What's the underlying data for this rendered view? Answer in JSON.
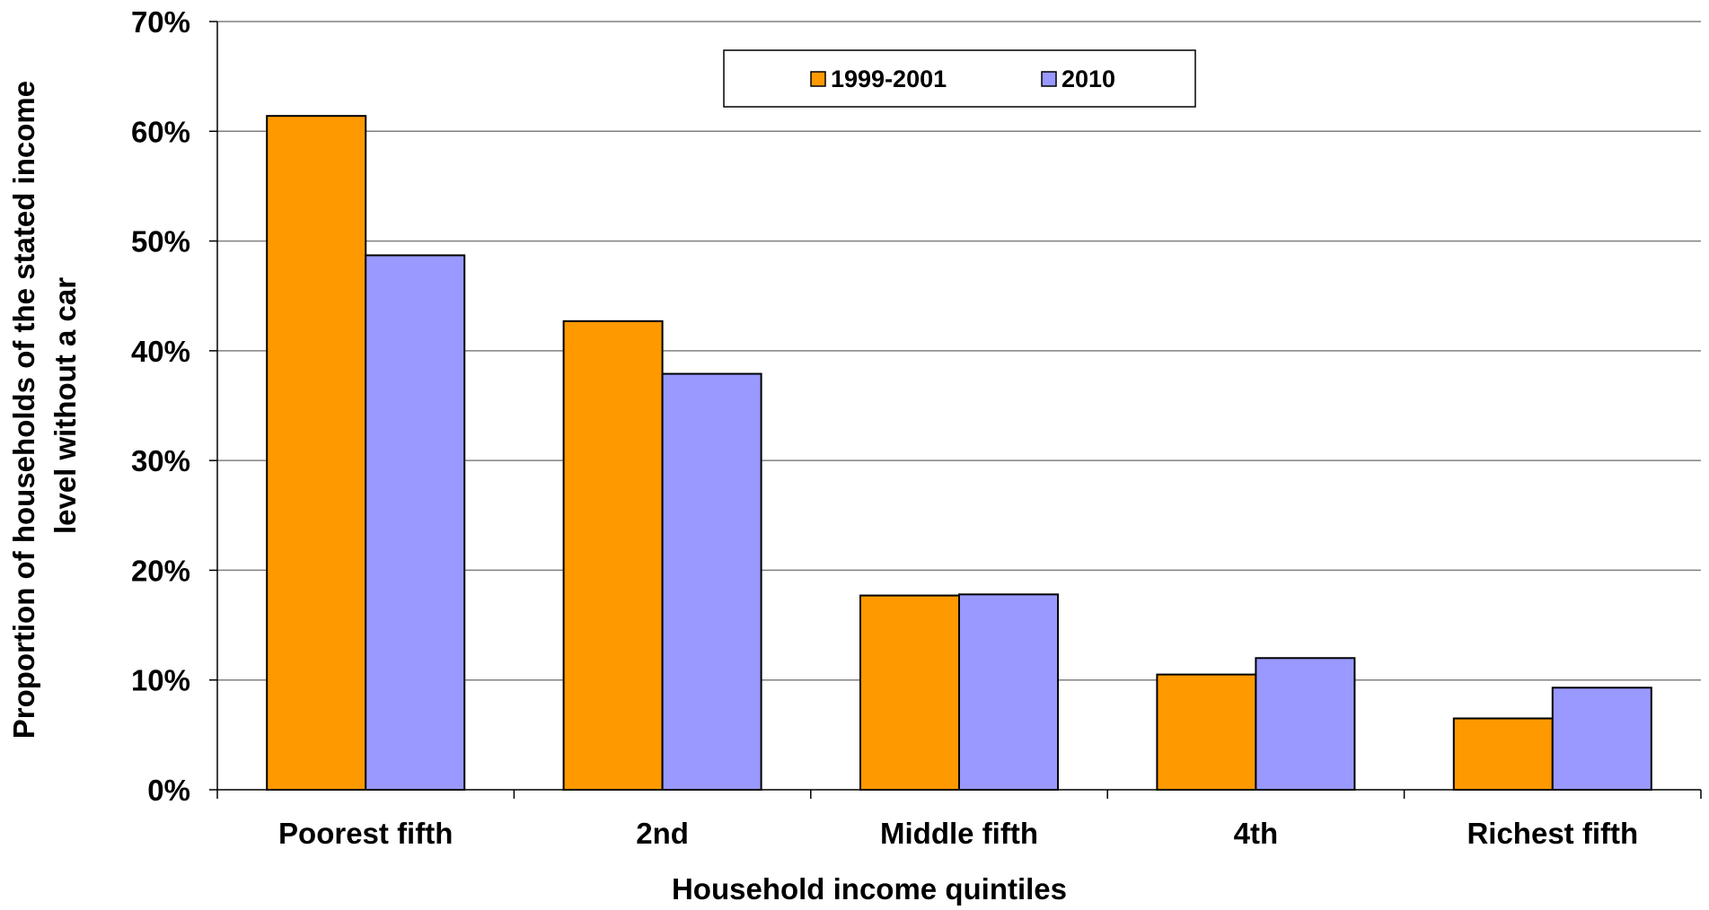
{
  "chart_data": {
    "type": "bar",
    "xlabel": "Household income quintiles",
    "ylabel_lines": [
      "Proportion of households of the stated income",
      "level without a car"
    ],
    "categories": [
      "Poorest fifth",
      "2nd",
      "Middle fifth",
      "4th",
      "Richest fifth"
    ],
    "series": [
      {
        "name": "1999-2001",
        "color": "#FF9900",
        "values": [
          61.4,
          42.7,
          17.7,
          10.5,
          6.5
        ]
      },
      {
        "name": "2010",
        "color": "#9999FF",
        "values": [
          48.7,
          37.9,
          17.8,
          12.0,
          9.3
        ]
      }
    ],
    "ylim": [
      0,
      70
    ],
    "yticks": [
      0,
      10,
      20,
      30,
      40,
      50,
      60,
      70
    ],
    "ytick_labels": [
      "0%",
      "10%",
      "20%",
      "30%",
      "40%",
      "50%",
      "60%",
      "70%"
    ],
    "grid": true,
    "legend_position": "top-center"
  }
}
